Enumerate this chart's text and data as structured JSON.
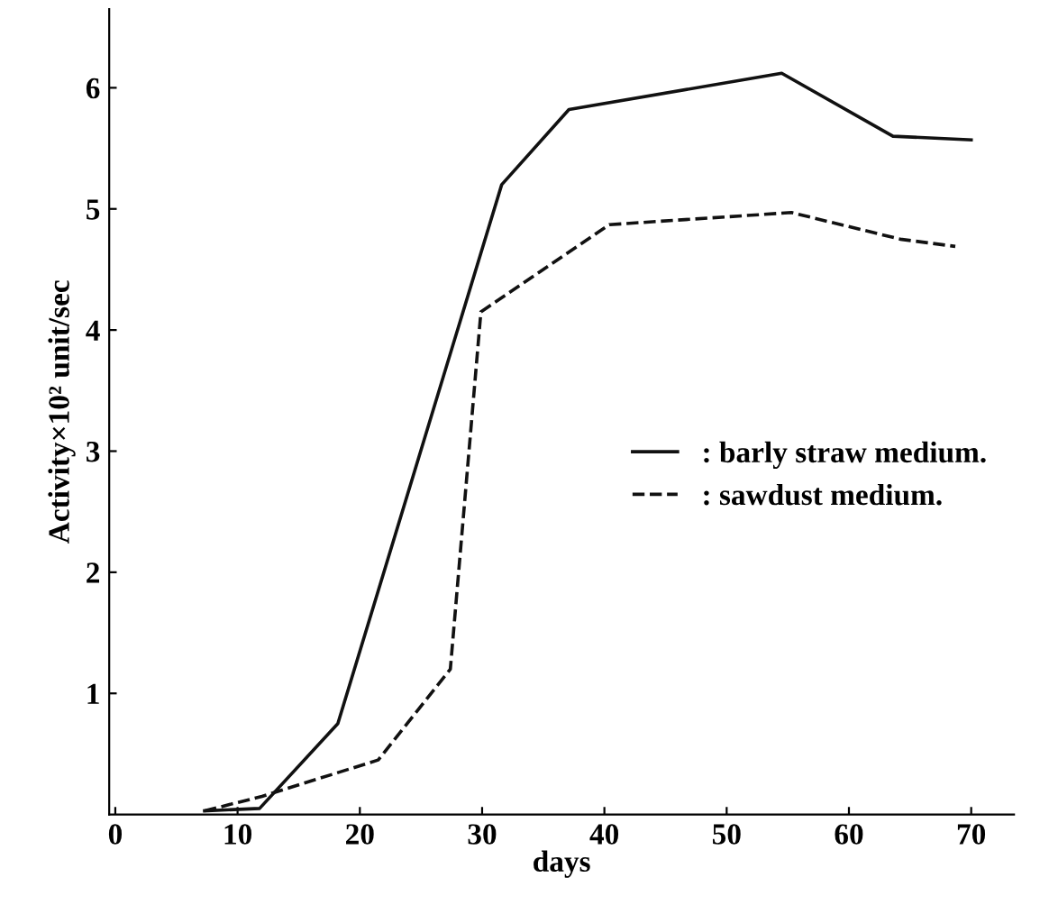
{
  "chart_data": {
    "type": "line",
    "xlabel": "days",
    "ylabel": "Activity×10² unit/sec",
    "xlim": [
      -0.5,
      73.5
    ],
    "ylim": [
      0,
      6.65
    ],
    "xticks": [
      0,
      10,
      20,
      30,
      40,
      50,
      60,
      70
    ],
    "yticks": [
      1,
      2,
      3,
      4,
      5,
      6
    ],
    "grid": false,
    "legend": "center right",
    "marker": "none",
    "series": [
      {
        "name": ": barly straw medium.",
        "color": "#111111",
        "line_style": "solid",
        "x": [
          7.3,
          11.8,
          18.2,
          31.6,
          37.1,
          54.5,
          63.6,
          70
        ],
        "values": [
          0.03,
          0.05,
          0.75,
          5.2,
          5.82,
          6.12,
          5.6,
          5.57
        ]
      },
      {
        "name": ": sawdust medium.",
        "color": "#111111",
        "line_style": "dashed",
        "x": [
          7.3,
          12,
          21.5,
          27.4,
          29.9,
          40.4,
          55.3,
          64.2,
          68.7
        ],
        "values": [
          0.03,
          0.15,
          0.45,
          1.2,
          4.15,
          4.87,
          4.97,
          4.75,
          4.69
        ]
      }
    ]
  }
}
